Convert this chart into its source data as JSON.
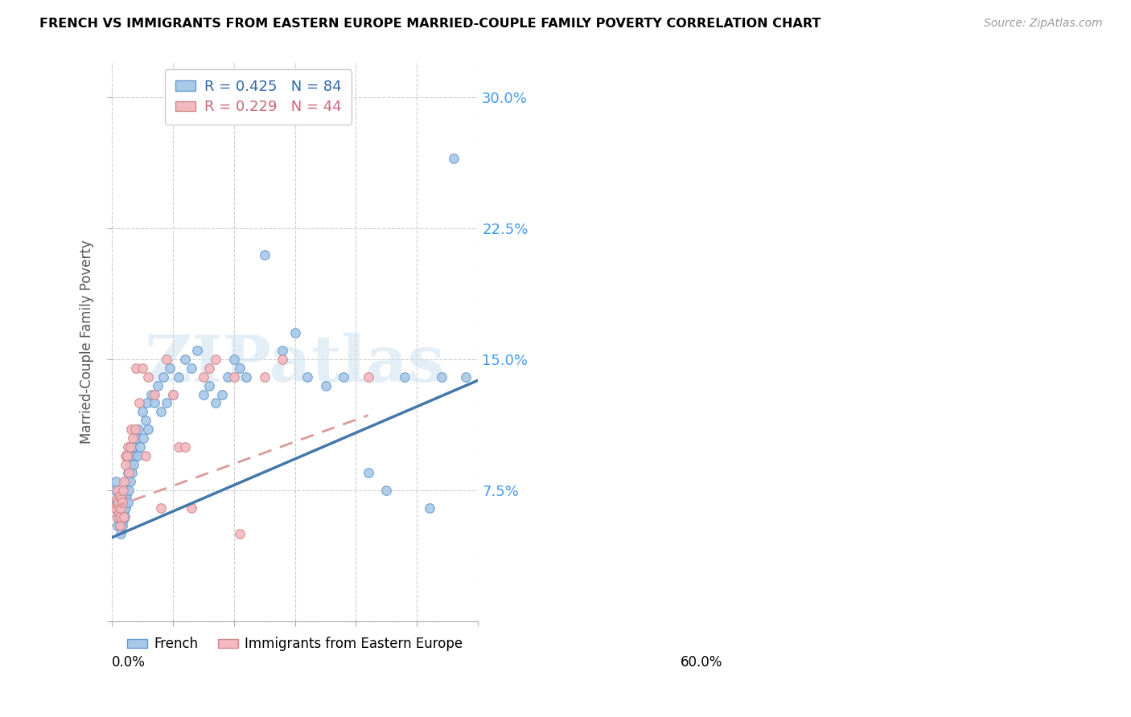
{
  "title": "FRENCH VS IMMIGRANTS FROM EASTERN EUROPE MARRIED-COUPLE FAMILY POVERTY CORRELATION CHART",
  "source": "Source: ZipAtlas.com",
  "ylabel": "Married-Couple Family Poverty",
  "ytick_labels": [
    "",
    "7.5%",
    "15.0%",
    "22.5%",
    "30.0%"
  ],
  "ytick_values": [
    0.0,
    0.075,
    0.15,
    0.225,
    0.3
  ],
  "xlim": [
    0.0,
    0.6
  ],
  "ylim": [
    0.0,
    0.32
  ],
  "legend_r1_text": "R = 0.425   N = 84",
  "legend_r2_text": "R = 0.229   N = 44",
  "color_french": "#a8c8e8",
  "color_eastern": "#f4b8c0",
  "color_french_edge": "#6699cc",
  "color_eastern_edge": "#cc8888",
  "color_french_line": "#4477aa",
  "color_eastern_line": "#dd9999",
  "background_color": "#ffffff",
  "grid_color": "#cccccc",
  "watermark": "ZIPatlas",
  "french_x": [
    0.005,
    0.007,
    0.008,
    0.009,
    0.01,
    0.01,
    0.01,
    0.011,
    0.012,
    0.012,
    0.013,
    0.013,
    0.014,
    0.014,
    0.015,
    0.015,
    0.015,
    0.016,
    0.016,
    0.017,
    0.017,
    0.018,
    0.018,
    0.019,
    0.02,
    0.02,
    0.021,
    0.022,
    0.022,
    0.023,
    0.024,
    0.025,
    0.026,
    0.027,
    0.028,
    0.03,
    0.031,
    0.032,
    0.033,
    0.035,
    0.036,
    0.038,
    0.04,
    0.042,
    0.044,
    0.046,
    0.05,
    0.052,
    0.055,
    0.058,
    0.06,
    0.065,
    0.07,
    0.075,
    0.08,
    0.085,
    0.09,
    0.095,
    0.1,
    0.11,
    0.12,
    0.13,
    0.14,
    0.15,
    0.16,
    0.17,
    0.18,
    0.19,
    0.2,
    0.21,
    0.22,
    0.25,
    0.28,
    0.3,
    0.32,
    0.35,
    0.38,
    0.42,
    0.45,
    0.48,
    0.52,
    0.54,
    0.56,
    0.58
  ],
  "french_y": [
    0.075,
    0.08,
    0.068,
    0.06,
    0.055,
    0.065,
    0.07,
    0.062,
    0.058,
    0.072,
    0.06,
    0.065,
    0.055,
    0.068,
    0.05,
    0.06,
    0.07,
    0.058,
    0.063,
    0.055,
    0.062,
    0.06,
    0.065,
    0.058,
    0.063,
    0.07,
    0.06,
    0.068,
    0.075,
    0.065,
    0.072,
    0.08,
    0.068,
    0.085,
    0.075,
    0.09,
    0.08,
    0.095,
    0.085,
    0.1,
    0.09,
    0.095,
    0.105,
    0.095,
    0.11,
    0.1,
    0.12,
    0.105,
    0.115,
    0.125,
    0.11,
    0.13,
    0.125,
    0.135,
    0.12,
    0.14,
    0.125,
    0.145,
    0.13,
    0.14,
    0.15,
    0.145,
    0.155,
    0.13,
    0.135,
    0.125,
    0.13,
    0.14,
    0.15,
    0.145,
    0.14,
    0.21,
    0.155,
    0.165,
    0.14,
    0.135,
    0.14,
    0.085,
    0.075,
    0.14,
    0.065,
    0.14,
    0.265,
    0.14
  ],
  "eastern_x": [
    0.005,
    0.008,
    0.01,
    0.01,
    0.011,
    0.012,
    0.013,
    0.013,
    0.014,
    0.015,
    0.016,
    0.017,
    0.018,
    0.02,
    0.02,
    0.022,
    0.023,
    0.025,
    0.026,
    0.028,
    0.03,
    0.032,
    0.035,
    0.038,
    0.04,
    0.045,
    0.05,
    0.055,
    0.06,
    0.07,
    0.08,
    0.09,
    0.1,
    0.11,
    0.12,
    0.13,
    0.15,
    0.16,
    0.17,
    0.2,
    0.21,
    0.25,
    0.28,
    0.42
  ],
  "eastern_y": [
    0.065,
    0.07,
    0.06,
    0.075,
    0.068,
    0.062,
    0.055,
    0.072,
    0.06,
    0.065,
    0.07,
    0.068,
    0.075,
    0.06,
    0.08,
    0.095,
    0.09,
    0.095,
    0.1,
    0.085,
    0.1,
    0.11,
    0.105,
    0.11,
    0.145,
    0.125,
    0.145,
    0.095,
    0.14,
    0.13,
    0.065,
    0.15,
    0.13,
    0.1,
    0.1,
    0.065,
    0.14,
    0.145,
    0.15,
    0.14,
    0.05,
    0.14,
    0.15,
    0.14
  ],
  "french_line_x": [
    0.0,
    0.6
  ],
  "french_line_y": [
    0.048,
    0.138
  ],
  "eastern_line_x": [
    0.0,
    0.42
  ],
  "eastern_line_y": [
    0.065,
    0.118
  ]
}
